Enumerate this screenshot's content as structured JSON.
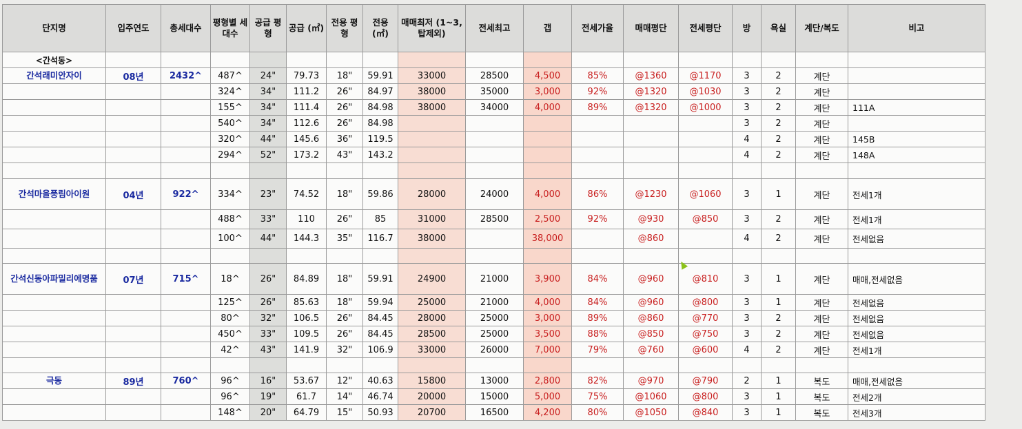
{
  "headers": [
    "단지명",
    "입주연도",
    "총세대수",
    "평형별 세대수",
    "공급 평형",
    "공급 (㎡)",
    "전용 평형",
    "전용 (㎡)",
    "매매최저 (1~3,탑제외)",
    "전세최고",
    "갭",
    "전세가율",
    "매매평단",
    "전세평단",
    "방",
    "욕실",
    "계단/복도",
    "비고"
  ],
  "section_label": "<간석동>",
  "complexes": [
    {
      "name": "간석래미안자이",
      "year": "08년",
      "households": "2432^",
      "rows": [
        {
          "c": [
            "487^",
            "24\"",
            "79.73",
            "18\"",
            "59.91",
            "33000",
            "28500",
            "4,500",
            "85%",
            "@1360",
            "@1170",
            "3",
            "2",
            "계단",
            ""
          ]
        },
        {
          "c": [
            "324^",
            "34\"",
            "111.2",
            "26\"",
            "84.97",
            "38000",
            "35000",
            "3,000",
            "92%",
            "@1320",
            "@1030",
            "3",
            "2",
            "계단",
            ""
          ]
        },
        {
          "c": [
            "155^",
            "34\"",
            "111.4",
            "26\"",
            "84.98",
            "38000",
            "34000",
            "4,000",
            "89%",
            "@1320",
            "@1000",
            "3",
            "2",
            "계단",
            "111A"
          ]
        },
        {
          "c": [
            "540^",
            "34\"",
            "112.6",
            "26\"",
            "84.98",
            "",
            "",
            "",
            "",
            "",
            "",
            "3",
            "2",
            "계단",
            ""
          ]
        },
        {
          "c": [
            "320^",
            "44\"",
            "145.6",
            "36\"",
            "119.5",
            "",
            "",
            "",
            "",
            "",
            "",
            "4",
            "2",
            "계단",
            "145B"
          ]
        },
        {
          "c": [
            "294^",
            "52\"",
            "173.2",
            "43\"",
            "143.2",
            "",
            "",
            "",
            "",
            "",
            "",
            "4",
            "2",
            "계단",
            "148A"
          ]
        }
      ]
    },
    {
      "name": "간석마을풍림아이원",
      "year": "04년",
      "households": "922^",
      "rows": [
        {
          "c": [
            "334^",
            "23\"",
            "74.52",
            "18\"",
            "59.86",
            "28000",
            "24000",
            "4,000",
            "86%",
            "@1230",
            "@1060",
            "3",
            "1",
            "계단",
            "전세1개"
          ]
        },
        {
          "c": [
            "488^",
            "33\"",
            "110",
            "26\"",
            "85",
            "31000",
            "28500",
            "2,500",
            "92%",
            "@930",
            "@850",
            "3",
            "2",
            "계단",
            "전세1개"
          ]
        },
        {
          "c": [
            "100^",
            "44\"",
            "144.3",
            "35\"",
            "116.7",
            "38000",
            "",
            "38,000",
            "",
            "@860",
            "",
            "4",
            "2",
            "계단",
            "전세없음"
          ]
        }
      ]
    },
    {
      "name": "간석신동아파밀리에명품",
      "year": "07년",
      "households": "715^",
      "rows": [
        {
          "c": [
            "18^",
            "26\"",
            "84.89",
            "18\"",
            "59.91",
            "24900",
            "21000",
            "3,900",
            "84%",
            "@960",
            "@810",
            "3",
            "1",
            "계단",
            "매매,전세없음"
          ]
        },
        {
          "c": [
            "125^",
            "26\"",
            "85.63",
            "18\"",
            "59.94",
            "25000",
            "21000",
            "4,000",
            "84%",
            "@960",
            "@800",
            "3",
            "1",
            "계단",
            "전세없음"
          ]
        },
        {
          "c": [
            "80^",
            "32\"",
            "106.5",
            "26\"",
            "84.45",
            "28000",
            "25000",
            "3,000",
            "89%",
            "@860",
            "@770",
            "3",
            "2",
            "계단",
            "전세없음"
          ]
        },
        {
          "c": [
            "450^",
            "33\"",
            "109.5",
            "26\"",
            "84.45",
            "28500",
            "25000",
            "3,500",
            "88%",
            "@850",
            "@750",
            "3",
            "2",
            "계단",
            "전세없음"
          ]
        },
        {
          "c": [
            "42^",
            "43\"",
            "141.9",
            "32\"",
            "106.9",
            "33000",
            "26000",
            "7,000",
            "79%",
            "@760",
            "@600",
            "4",
            "2",
            "계단",
            "전세1개"
          ]
        }
      ]
    },
    {
      "name": "극동",
      "year": "89년",
      "households": "760^",
      "rows": [
        {
          "c": [
            "96^",
            "16\"",
            "53.67",
            "12\"",
            "40.63",
            "15800",
            "13000",
            "2,800",
            "82%",
            "@970",
            "@790",
            "2",
            "1",
            "복도",
            "매매,전세없음"
          ]
        },
        {
          "c": [
            "96^",
            "19\"",
            "61.7",
            "14\"",
            "46.74",
            "20000",
            "15000",
            "5,000",
            "75%",
            "@1060",
            "@800",
            "3",
            "1",
            "복도",
            "전세2개"
          ]
        },
        {
          "c": [
            "148^",
            "20\"",
            "64.79",
            "15\"",
            "50.93",
            "20700",
            "16500",
            "4,200",
            "80%",
            "@1050",
            "@840",
            "3",
            "1",
            "복도",
            "전세3개"
          ]
        }
      ]
    }
  ],
  "colors": {
    "accent_blue": "#1a2aa0",
    "accent_red": "#c81e1e",
    "highlight_peach": "#f9d7cb",
    "highlight_gray": "#dddedb"
  },
  "cursor_icon": "pointer-arrow-icon"
}
